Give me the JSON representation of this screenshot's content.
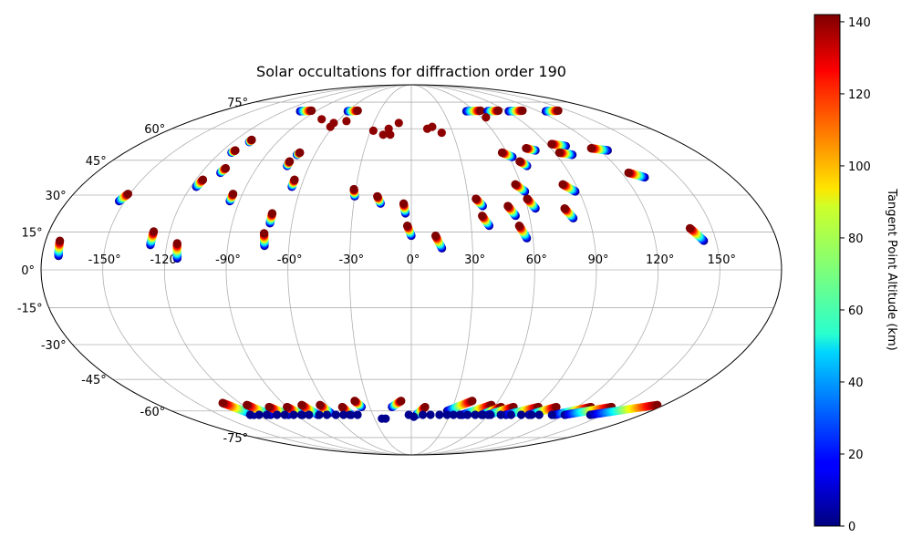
{
  "chart_data": {
    "type": "scatter",
    "projection": "mollweide",
    "title": "Solar occultations for diffraction order 190",
    "xlabel": "",
    "ylabel": "",
    "longitude_ticks": [
      "-150°",
      "-120°",
      "-90°",
      "-60°",
      "-30°",
      "0°",
      "30°",
      "60°",
      "90°",
      "120°",
      "150°"
    ],
    "longitude_values": [
      -150,
      -120,
      -90,
      -60,
      -30,
      0,
      30,
      60,
      90,
      120,
      150
    ],
    "latitude_ticks": [
      "75°",
      "60°",
      "45°",
      "30°",
      "15°",
      "0°",
      "-15°",
      "-30°",
      "-45°",
      "-60°",
      "-75°"
    ],
    "latitude_values": [
      75,
      60,
      45,
      30,
      15,
      0,
      -15,
      -30,
      -45,
      -60,
      -75
    ],
    "grid": true,
    "colormap": "jet",
    "colorbar": {
      "label": "Tangent Point Altitude (km)",
      "range": [
        0,
        142
      ],
      "ticks": [
        "0",
        "20",
        "40",
        "60",
        "80",
        "100",
        "120",
        "140"
      ],
      "tick_values": [
        0,
        20,
        40,
        60,
        80,
        100,
        120,
        140
      ]
    },
    "marker_size_pt": 8,
    "series": [
      {
        "name": "north_tracks",
        "tracks": [
          {
            "lon0": -172,
            "lat0": 5.5,
            "lon1": -173,
            "lat1": 11.5
          },
          {
            "lon0": -128,
            "lat0": 9.8,
            "lon1": -128,
            "lat1": 15.2
          },
          {
            "lon0": -114,
            "lat0": 4.5,
            "lon1": -115,
            "lat1": 10.5
          },
          {
            "lon0": -72,
            "lat0": 9.5,
            "lon1": -73,
            "lat1": 14.5
          },
          {
            "lon0": -71,
            "lat0": 18.5,
            "lon1": -71,
            "lat1": 22.5
          },
          {
            "lon0": -153,
            "lat0": 27.5,
            "lon1": -151,
            "lat1": 30.5
          },
          {
            "lon0": -117,
            "lat0": 33.5,
            "lon1": -116,
            "lat1": 36.5
          },
          {
            "lon0": -95,
            "lat0": 27.5,
            "lon1": -95,
            "lat1": 30.5
          },
          {
            "lon0": -65,
            "lat0": 33.5,
            "lon1": -65,
            "lat1": 36.5
          },
          {
            "lon0": -30,
            "lat0": 29.5,
            "lon1": -31,
            "lat1": 32.5
          },
          {
            "lon0": -16,
            "lat0": 26.5,
            "lon1": -18,
            "lat1": 29.5
          },
          {
            "lon0": -3,
            "lat0": 22.5,
            "lon1": -4,
            "lat1": 26.5
          },
          {
            "lon0": 0,
            "lat0": 13.5,
            "lon1": -2,
            "lat1": 17.5
          },
          {
            "lon0": 15,
            "lat0": 8.5,
            "lon1": 12,
            "lat1": 13.5
          },
          {
            "lon0": 39,
            "lat0": 17.5,
            "lon1": 36,
            "lat1": 21.5
          },
          {
            "lon0": 37,
            "lat0": 25.5,
            "lon1": 34,
            "lat1": 28.5
          },
          {
            "lon0": 53,
            "lat0": 21.5,
            "lon1": 50,
            "lat1": 25.5
          },
          {
            "lon0": 57,
            "lat0": 12.5,
            "lon1": 54,
            "lat1": 17.5
          },
          {
            "lon0": 64,
            "lat0": 24.5,
            "lon1": 61,
            "lat1": 28.5
          },
          {
            "lon0": 82,
            "lat0": 20.5,
            "lon1": 79,
            "lat1": 24.5
          },
          {
            "lon0": 61,
            "lat0": 31.5,
            "lon1": 57,
            "lat1": 34.5
          },
          {
            "lon0": 88,
            "lat0": 31.5,
            "lon1": 83,
            "lat1": 34.5
          },
          {
            "lon0": 144,
            "lat0": 11.5,
            "lon1": 139,
            "lat1": 16.5
          },
          {
            "lon0": 131,
            "lat0": 37.5,
            "lon1": 124,
            "lat1": 39.5
          },
          {
            "lon0": -109,
            "lat0": 39.5,
            "lon1": -108,
            "lat1": 41.5
          },
          {
            "lon0": -73,
            "lat0": 42.5,
            "lon1": -73,
            "lat1": 44.5
          },
          {
            "lon0": -71,
            "lat0": 47.5,
            "lon1": -70,
            "lat1": 48.5
          },
          {
            "lon0": -113,
            "lat0": 48.5,
            "lon1": -112,
            "lat1": 49.5
          },
          {
            "lon0": -109,
            "lat0": 53.5,
            "lon1": -109,
            "lat1": 54.5
          },
          {
            "lon0": 68,
            "lat0": 42.5,
            "lon1": 65,
            "lat1": 44.5
          },
          {
            "lon0": 62,
            "lat0": 46.5,
            "lon1": 57,
            "lat1": 48.5
          },
          {
            "lon0": 79,
            "lat0": 49.5,
            "lon1": 74,
            "lat1": 50.5
          },
          {
            "lon0": 101,
            "lat0": 51.5,
            "lon1": 93,
            "lat1": 52.5
          },
          {
            "lon0": 100,
            "lat0": 47.5,
            "lon1": 93,
            "lat1": 48.5
          },
          {
            "lon0": 125,
            "lat0": 49.5,
            "lon1": 116,
            "lat1": 50.5
          },
          {
            "lon0": -105,
            "lat0": 69.5,
            "lon1": -95,
            "lat1": 69.8
          },
          {
            "lon0": -60,
            "lat0": 69.5,
            "lon1": -51,
            "lat1": 69.8
          },
          {
            "lon0": 52,
            "lat0": 69.5,
            "lon1": 66,
            "lat1": 69.8
          },
          {
            "lon0": 72,
            "lat0": 69.5,
            "lon1": 83,
            "lat1": 69.8
          },
          {
            "lon0": 92,
            "lat0": 69.5,
            "lon1": 106,
            "lat1": 69.8
          },
          {
            "lon0": 127,
            "lat0": 69.5,
            "lon1": 140,
            "lat1": 69.8
          }
        ]
      },
      {
        "name": "north_points",
        "points": [
          {
            "lon": -53,
            "lat": 64,
            "alt": 140
          },
          {
            "lon": -62,
            "lat": 61,
            "alt": 140
          },
          {
            "lon": -62,
            "lat": 63,
            "alt": 140
          },
          {
            "lon": -75,
            "lat": 65,
            "alt": 140
          },
          {
            "lon": -17,
            "lat": 60,
            "alt": 140
          },
          {
            "lon": -20,
            "lat": 57,
            "alt": 140
          },
          {
            "lon": -28,
            "lat": 59,
            "alt": 140
          },
          {
            "lon": -15,
            "lat": 57,
            "alt": 140
          },
          {
            "lon": -10,
            "lat": 63,
            "alt": 140
          },
          {
            "lon": 12,
            "lat": 60,
            "alt": 140
          },
          {
            "lon": 16,
            "lat": 61,
            "alt": 140
          },
          {
            "lon": 22,
            "lat": 58,
            "alt": 140
          },
          {
            "lon": 64,
            "lat": 66,
            "alt": 140
          }
        ]
      },
      {
        "name": "south_tracks",
        "tracks": [
          {
            "lon0": -123,
            "lat0": -62,
            "lon1": -132,
            "lat1": -56
          },
          {
            "lon0": -110,
            "lat0": -62,
            "lon1": -117,
            "lat1": -57
          },
          {
            "lon0": -96,
            "lat0": -62,
            "lon1": -103,
            "lat1": -58
          },
          {
            "lon0": -85,
            "lat0": -62,
            "lon1": -90,
            "lat1": -58
          },
          {
            "lon0": -73,
            "lat0": -62,
            "lon1": -78,
            "lat1": -57
          },
          {
            "lon0": -62,
            "lat0": -61,
            "lon1": -65,
            "lat1": -57
          },
          {
            "lon0": -47,
            "lat0": -62,
            "lon1": -50,
            "lat1": -58
          },
          {
            "lon0": -36,
            "lat0": -58,
            "lon1": -39,
            "lat1": -55
          },
          {
            "lon0": -14,
            "lat0": -58,
            "lon1": -7,
            "lat1": -55
          },
          {
            "lon0": 4,
            "lat0": -62,
            "lon1": 10,
            "lat1": -58
          },
          {
            "lon0": 27,
            "lat0": -60,
            "lon1": 42,
            "lat1": -55
          },
          {
            "lon0": 40,
            "lat0": -62,
            "lon1": 57,
            "lat1": -57
          },
          {
            "lon0": 55,
            "lat0": -62,
            "lon1": 65,
            "lat1": -58
          },
          {
            "lon0": 60,
            "lat0": -62,
            "lon1": 74,
            "lat1": -58
          },
          {
            "lon0": 74,
            "lat0": -62,
            "lon1": 92,
            "lat1": -58
          },
          {
            "lon0": 92,
            "lat0": -62,
            "lon1": 105,
            "lat1": -58
          },
          {
            "lon0": 112,
            "lat0": -62,
            "lon1": 130,
            "lat1": -58
          },
          {
            "lon0": 120,
            "lat0": -62,
            "lon1": 145,
            "lat1": -58
          },
          {
            "lon0": 140,
            "lat0": -62,
            "lon1": 175,
            "lat1": -57
          }
        ]
      },
      {
        "name": "south_points",
        "points": [
          {
            "lon": -126,
            "lat": -62,
            "alt": 2
          },
          {
            "lon": -119,
            "lat": -62,
            "alt": 2
          },
          {
            "lon": -113,
            "lat": -62,
            "alt": 2
          },
          {
            "lon": -105,
            "lat": -62,
            "alt": 2
          },
          {
            "lon": -99,
            "lat": -62,
            "alt": 2
          },
          {
            "lon": -92,
            "lat": -62,
            "alt": 2
          },
          {
            "lon": -86,
            "lat": -62,
            "alt": 2
          },
          {
            "lon": -80,
            "lat": -62,
            "alt": 2
          },
          {
            "lon": -72,
            "lat": -62,
            "alt": 2
          },
          {
            "lon": -66,
            "lat": -62,
            "alt": 2
          },
          {
            "lon": -59,
            "lat": -62,
            "alt": 2
          },
          {
            "lon": -53,
            "lat": -62,
            "alt": 2
          },
          {
            "lon": -48,
            "lat": -62,
            "alt": 2
          },
          {
            "lon": -42,
            "lat": -62,
            "alt": 2
          },
          {
            "lon": -24,
            "lat": -64,
            "alt": 2
          },
          {
            "lon": -21,
            "lat": -64,
            "alt": 2
          },
          {
            "lon": -2,
            "lat": -62,
            "alt": 2
          },
          {
            "lon": 2,
            "lat": -63,
            "alt": 2
          },
          {
            "lon": 9,
            "lat": -62,
            "alt": 2
          },
          {
            "lon": 15,
            "lat": -62,
            "alt": 2
          },
          {
            "lon": 22,
            "lat": -62,
            "alt": 2
          },
          {
            "lon": 28,
            "lat": -62,
            "alt": 2
          },
          {
            "lon": 33,
            "lat": -62,
            "alt": 2
          },
          {
            "lon": 38,
            "lat": -62,
            "alt": 2
          },
          {
            "lon": 44,
            "lat": -62,
            "alt": 2
          },
          {
            "lon": 50,
            "lat": -62,
            "alt": 2
          },
          {
            "lon": 56,
            "lat": -62,
            "alt": 2
          },
          {
            "lon": 62,
            "lat": -62,
            "alt": 2
          },
          {
            "lon": 70,
            "lat": -62,
            "alt": 2
          },
          {
            "lon": 78,
            "lat": -62,
            "alt": 2
          },
          {
            "lon": 86,
            "lat": -62,
            "alt": 2
          },
          {
            "lon": 94,
            "lat": -62,
            "alt": 2
          },
          {
            "lon": 100,
            "lat": -62,
            "alt": 2
          },
          {
            "lon": 110,
            "lat": -62,
            "alt": 2
          }
        ]
      }
    ]
  }
}
